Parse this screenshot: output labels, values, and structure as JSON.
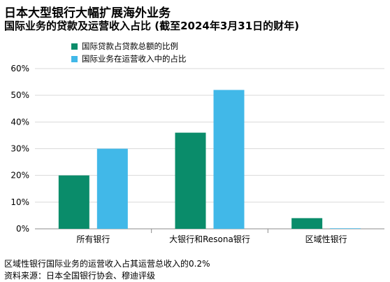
{
  "title": "日本大型银行大幅扩展海外业务",
  "subtitle": "国际业务的贷款及运营收入占比 (截至2024年3月31日的财年)",
  "note": "区域性银行国际业务的运营收入占其运营总收入的0.2%",
  "source": "资料来源：日本全国银行协会、穆迪评级",
  "colors": {
    "series1": "#0a8c6a",
    "series2": "#41b8e8",
    "grid": "#d9d9d9",
    "axis": "#8c8c8c"
  },
  "chart_data": {
    "type": "bar",
    "title": "国际业务的贷款及运营收入占比 (截至2024年3月31日的财年)",
    "categories": [
      "所有银行",
      "大银行和Resona银行",
      "区域性银行"
    ],
    "series": [
      {
        "name": "国际贷款占贷款总额的比例",
        "values": [
          20,
          36,
          4
        ]
      },
      {
        "name": "国际业务在运营收入中的占比",
        "values": [
          30,
          52,
          0.2
        ]
      }
    ],
    "yticks": [
      "0%",
      "10%",
      "20%",
      "30%",
      "40%",
      "50%",
      "60%"
    ],
    "ylim": [
      0,
      60
    ],
    "xlabel": "",
    "ylabel": "",
    "grid": true,
    "legend": "top-left"
  }
}
